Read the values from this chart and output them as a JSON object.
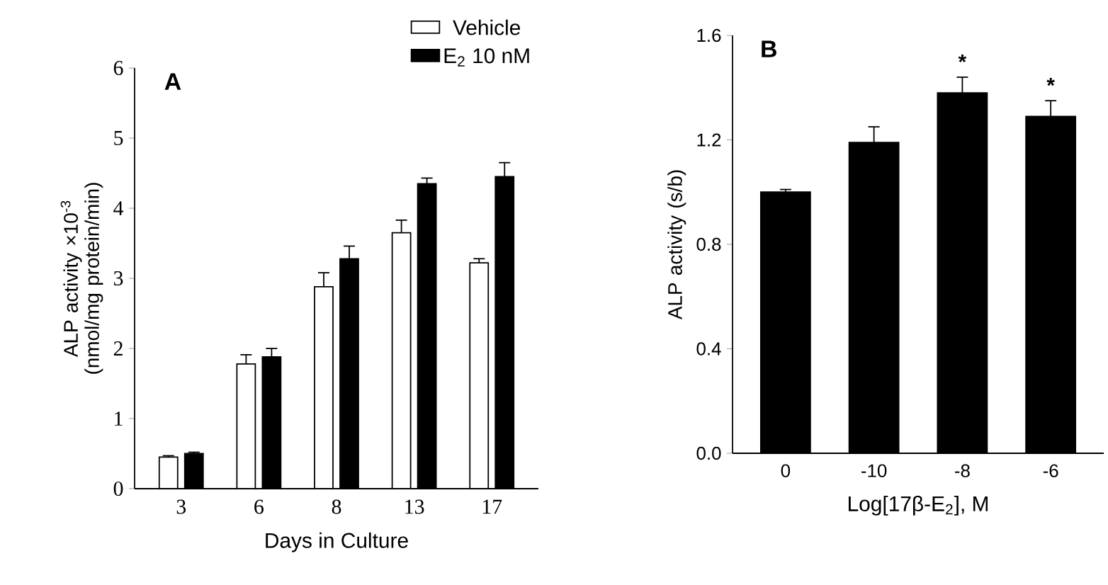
{
  "chart_data": [
    {
      "type": "bar",
      "title": "A",
      "xlabel": "Days in Culture",
      "ylabel": "ALP activity ×10$^{-3}$ (nmol/mg protein/min)",
      "categories": [
        "3",
        "6",
        "8",
        "13",
        "17"
      ],
      "ylim": [
        0,
        6
      ],
      "yticks": [
        0,
        1,
        2,
        3,
        4,
        5,
        6
      ],
      "legend": "top right",
      "series": [
        {
          "name": "Vehicle",
          "color": "#ffffff",
          "values": [
            0.45,
            1.78,
            2.88,
            3.65,
            3.22
          ],
          "errors": [
            0.02,
            0.13,
            0.2,
            0.18,
            0.06
          ]
        },
        {
          "name": "E$_{2}$ 10 nM",
          "color": "#000000",
          "values": [
            0.5,
            1.88,
            3.28,
            4.35,
            4.45
          ],
          "errors": [
            0.02,
            0.12,
            0.18,
            0.08,
            0.2
          ]
        }
      ]
    },
    {
      "type": "bar",
      "title": "B",
      "xlabel": "Log[17β-E$_{2}$], M",
      "ylabel": "ALP activity (s/b)",
      "categories": [
        "0",
        "-10",
        "-8",
        "-6"
      ],
      "ylim": [
        0,
        1.6
      ],
      "yticks": [
        {
          "value": 0,
          "label": "0.0"
        },
        0.4,
        0.8,
        1.2,
        1.6
      ],
      "series": [
        {
          "color": "#000000",
          "values": [
            1.0,
            1.19,
            1.38,
            1.29
          ],
          "errors": [
            0.01,
            0.06,
            0.06,
            0.06
          ]
        }
      ],
      "annotations": [
        {
          "text": "*",
          "x": "-8",
          "y": 1.44
        },
        {
          "text": "*",
          "x": "-6",
          "y": 1.35
        }
      ]
    }
  ]
}
